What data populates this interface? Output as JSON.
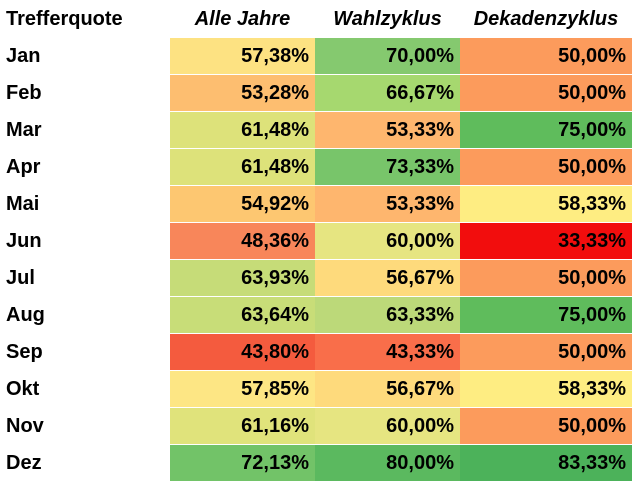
{
  "chart_data": {
    "type": "heatmap",
    "title": "",
    "corner_label": "Trefferquote",
    "columns": [
      "Alle Jahre",
      "Wahlzyklus",
      "Dekadenzyklus"
    ],
    "rows": [
      "Jan",
      "Feb",
      "Mar",
      "Apr",
      "Mai",
      "Jun",
      "Jul",
      "Aug",
      "Sep",
      "Okt",
      "Nov",
      "Dez"
    ],
    "values": [
      [
        "57,38%",
        "70,00%",
        "50,00%"
      ],
      [
        "53,28%",
        "66,67%",
        "50,00%"
      ],
      [
        "61,48%",
        "53,33%",
        "75,00%"
      ],
      [
        "61,48%",
        "73,33%",
        "50,00%"
      ],
      [
        "54,92%",
        "53,33%",
        "58,33%"
      ],
      [
        "48,36%",
        "60,00%",
        "33,33%"
      ],
      [
        "63,93%",
        "56,67%",
        "50,00%"
      ],
      [
        "63,64%",
        "63,33%",
        "75,00%"
      ],
      [
        "43,80%",
        "43,33%",
        "50,00%"
      ],
      [
        "57,85%",
        "56,67%",
        "58,33%"
      ],
      [
        "61,16%",
        "60,00%",
        "50,00%"
      ],
      [
        "72,13%",
        "80,00%",
        "83,33%"
      ]
    ],
    "colors": [
      [
        "#fde282",
        "#85c96f",
        "#fc9b5c"
      ],
      [
        "#fdbe70",
        "#a6d86f",
        "#fc9b5c"
      ],
      [
        "#dde27a",
        "#feb66e",
        "#5fbc5c"
      ],
      [
        "#dde27a",
        "#78c56a",
        "#fc9b5c"
      ],
      [
        "#fdc771",
        "#feb66e",
        "#feed82"
      ],
      [
        "#f8865a",
        "#e6e581",
        "#f20d0d"
      ],
      [
        "#c6dc78",
        "#feda7c",
        "#fc9b5c"
      ],
      [
        "#c8dd78",
        "#bcd979",
        "#5fbc5c"
      ],
      [
        "#f45b3e",
        "#f96e4a",
        "#fc9b5c"
      ],
      [
        "#fde684",
        "#feda7c",
        "#feed82"
      ],
      [
        "#e0e37b",
        "#e6e581",
        "#fc9b5c"
      ],
      [
        "#72c368",
        "#5bb95f",
        "#4cb25a"
      ]
    ]
  }
}
